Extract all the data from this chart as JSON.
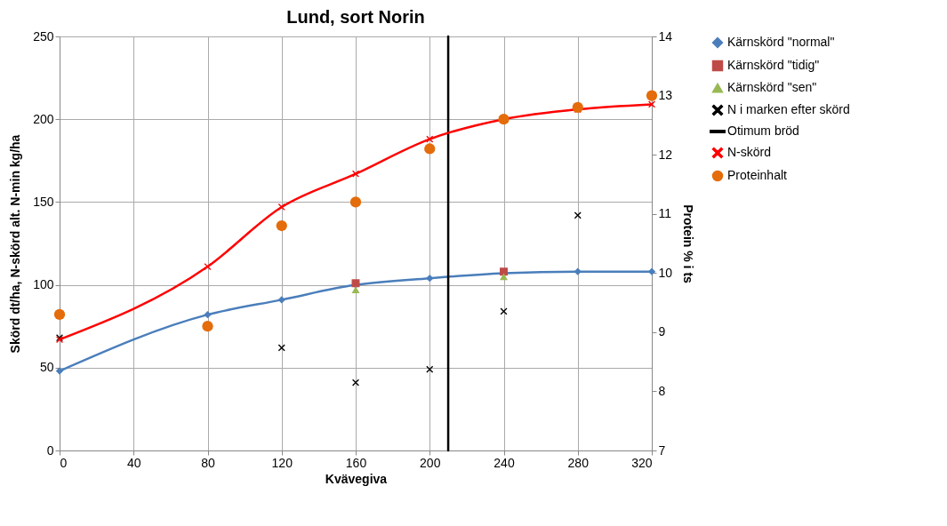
{
  "chart_data": {
    "type": "line",
    "title": "Lund, sort Norin",
    "xlabel": "Kvävegiva",
    "ylabel": "Skörd dt/ha, N-skörd alt. N-min kg/ha",
    "y2label": "Protein % i ts",
    "x": [
      0,
      80,
      120,
      160,
      200,
      240,
      280,
      320
    ],
    "xlim": [
      0,
      320
    ],
    "xticks": [
      0,
      40,
      80,
      120,
      160,
      200,
      240,
      280,
      320
    ],
    "ylim": [
      0,
      250
    ],
    "yticks": [
      0,
      50,
      100,
      150,
      200,
      250
    ],
    "y2lim": [
      7,
      14
    ],
    "y2ticks": [
      7,
      8,
      9,
      10,
      11,
      12,
      13,
      14
    ],
    "grid": true,
    "legend": "right",
    "series": [
      {
        "name": "Kärnskörd \"normal\"",
        "marker": "diamond",
        "color": "#4a7ebb",
        "values": [
          48,
          82,
          91,
          100,
          104,
          107,
          108,
          108
        ]
      },
      {
        "name": "Kärnskörd \"tidig\"",
        "type": "scatter",
        "marker": "square",
        "color": "#be4b48",
        "x": [
          160,
          240
        ],
        "values": [
          101,
          108
        ]
      },
      {
        "name": "Kärnskörd \"sen\"",
        "type": "scatter",
        "marker": "triangle",
        "color": "#98b954",
        "x": [
          160,
          240
        ],
        "values": [
          97,
          105
        ]
      },
      {
        "name": "N i marken efter skörd",
        "type": "scatter",
        "marker": "cross",
        "color": "#000000",
        "x": [
          0,
          120,
          160,
          200,
          240,
          280
        ],
        "values": [
          68,
          62,
          41,
          49,
          84,
          142
        ]
      },
      {
        "name": "Otimum bröd",
        "marker": "none",
        "color": "#000000",
        "x": [
          210,
          210
        ],
        "values": [
          0,
          250
        ]
      },
      {
        "name": "N-skörd",
        "marker": "cross",
        "color": "#ff0000",
        "values": [
          67,
          111,
          147,
          167,
          188,
          200,
          206,
          209
        ]
      },
      {
        "name": "Proteinhalt",
        "type": "scatter",
        "marker": "circle",
        "color": "#e46c0a",
        "axis": "y2",
        "values": [
          9.3,
          9.1,
          10.8,
          11.2,
          12.1,
          12.6,
          12.8,
          13.0
        ]
      }
    ]
  }
}
